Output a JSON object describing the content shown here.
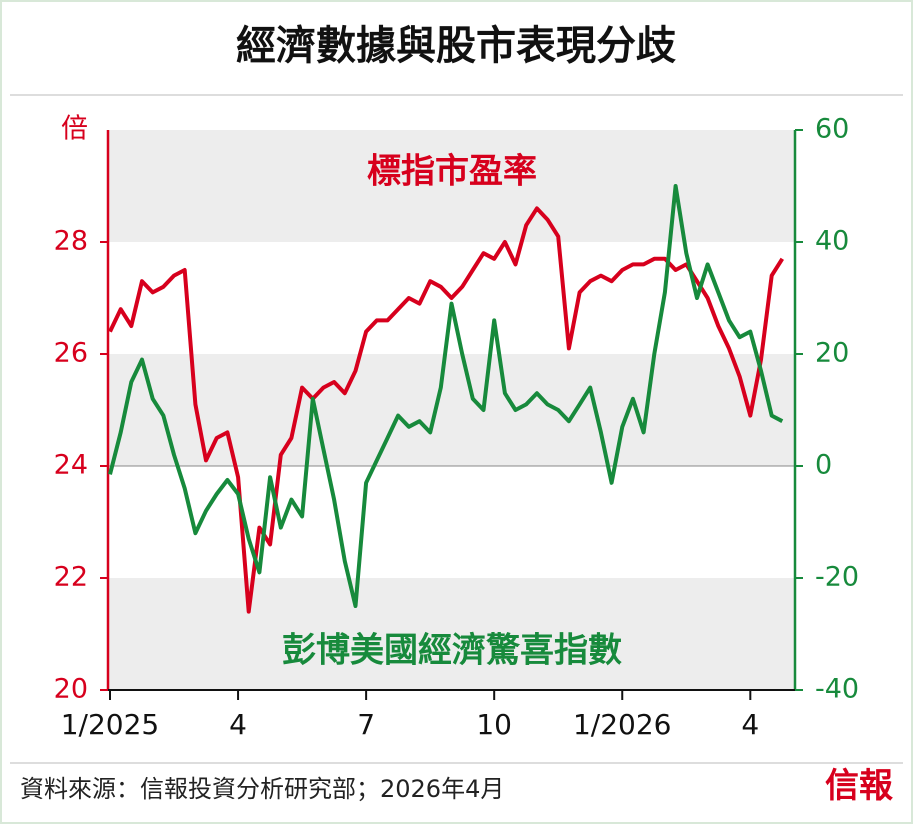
{
  "chart_data": {
    "type": "line",
    "title": "經濟數據與股市表現分歧",
    "y_unit": "倍",
    "source": "資料來源：信報投資分析研究部；2026年4月",
    "logo": "信報",
    "xlim": [
      0,
      16
    ],
    "xticks": [
      {
        "value": 0,
        "label": "1/2025"
      },
      {
        "value": 3,
        "label": "4"
      },
      {
        "value": 6,
        "label": "7"
      },
      {
        "value": 9,
        "label": "10"
      },
      {
        "value": 12,
        "label": "1/2026"
      },
      {
        "value": 15,
        "label": "4"
      }
    ],
    "ylim": [
      20,
      30
    ],
    "yticks": [
      20,
      22,
      24,
      26,
      28
    ],
    "y2lim": [
      -40,
      60
    ],
    "y2ticks": [
      -40,
      -20,
      0,
      20,
      40,
      60
    ],
    "x": [
      0,
      0.25,
      0.5,
      0.75,
      1,
      1.25,
      1.5,
      1.75,
      2,
      2.25,
      2.5,
      2.75,
      3,
      3.25,
      3.5,
      3.75,
      4,
      4.25,
      4.5,
      4.75,
      5,
      5.25,
      5.5,
      5.75,
      6,
      6.25,
      6.5,
      6.75,
      7,
      7.25,
      7.5,
      7.75,
      8,
      8.25,
      8.5,
      8.75,
      9,
      9.25,
      9.5,
      9.75,
      10,
      10.25,
      10.5,
      10.75,
      11,
      11.25,
      11.5,
      11.75,
      12,
      12.25,
      12.5,
      12.75,
      13,
      13.25,
      13.5,
      13.75,
      14,
      14.25,
      14.5,
      14.75,
      15,
      15.25,
      15.5,
      15.75
    ],
    "series": [
      {
        "name": "標指市盈率",
        "color": "#d7001d",
        "axis": "y",
        "values": [
          26.4,
          26.8,
          26.5,
          27.3,
          27.1,
          27.2,
          27.4,
          27.5,
          25.1,
          24.1,
          24.5,
          24.6,
          23.8,
          21.4,
          22.9,
          22.6,
          24.2,
          24.5,
          25.4,
          25.2,
          25.4,
          25.5,
          25.3,
          25.7,
          26.4,
          26.6,
          26.6,
          26.8,
          27.0,
          26.9,
          27.3,
          27.2,
          27.0,
          27.2,
          27.5,
          27.8,
          27.7,
          28.0,
          27.6,
          28.3,
          28.6,
          28.4,
          28.1,
          26.1,
          27.1,
          27.3,
          27.4,
          27.3,
          27.5,
          27.6,
          27.6,
          27.7,
          27.7,
          27.5,
          27.6,
          27.3,
          27.0,
          26.5,
          26.1,
          25.6,
          24.9,
          25.9,
          27.4,
          27.7
        ]
      },
      {
        "name": "彭博美國經濟驚喜指數",
        "color": "#178a3c",
        "axis": "y2",
        "values": [
          -1.5,
          6,
          15,
          19,
          12,
          9,
          2,
          -4,
          -12,
          -8,
          -5,
          -2.5,
          -5,
          -13,
          -19,
          -2,
          -11,
          -6,
          -9,
          12,
          3,
          -6,
          -17,
          -25,
          -3,
          1,
          5,
          9,
          7,
          8,
          6,
          14,
          29,
          20,
          12,
          10,
          26,
          13,
          10,
          11,
          13,
          11,
          10,
          8,
          11,
          14,
          6,
          -3,
          7,
          12,
          6,
          20,
          31,
          50,
          38,
          30,
          36,
          31,
          26,
          23,
          24,
          17,
          9,
          8
        ]
      }
    ]
  }
}
